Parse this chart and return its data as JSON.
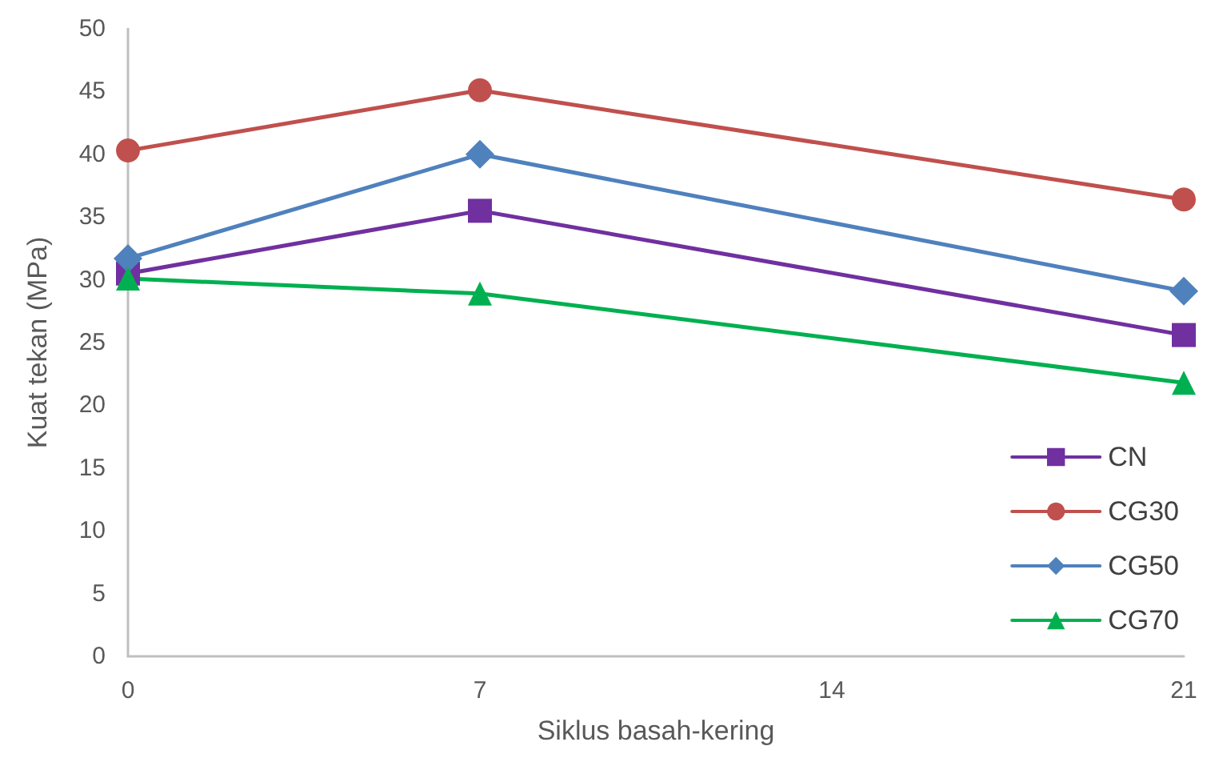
{
  "chart_data": {
    "type": "line",
    "xlabel": "Siklus basah-kering",
    "ylabel": "Kuat tekan (MPa)",
    "x": [
      0,
      7,
      21
    ],
    "xlim": [
      0,
      21
    ],
    "xticks": [
      0,
      7,
      14,
      21
    ],
    "ylim": [
      0,
      50
    ],
    "yticks": [
      0,
      5,
      10,
      15,
      20,
      25,
      30,
      35,
      40,
      45,
      50
    ],
    "grid": false,
    "legend": "bottom right",
    "line_style": "solid",
    "series": [
      {
        "name": "CN",
        "color": "#7030a0",
        "marker": "square",
        "values": [
          30.5,
          35.5,
          25.6
        ]
      },
      {
        "name": "CG30",
        "color": "#c0504d",
        "marker": "circle",
        "values": [
          40.3,
          45.1,
          36.4
        ]
      },
      {
        "name": "CG50",
        "color": "#4f81bd",
        "marker": "diamond",
        "values": [
          31.7,
          40.0,
          29.1
        ]
      },
      {
        "name": "CG70",
        "color": "#00b050",
        "marker": "triangle",
        "values": [
          30.1,
          28.9,
          21.8
        ]
      }
    ]
  }
}
